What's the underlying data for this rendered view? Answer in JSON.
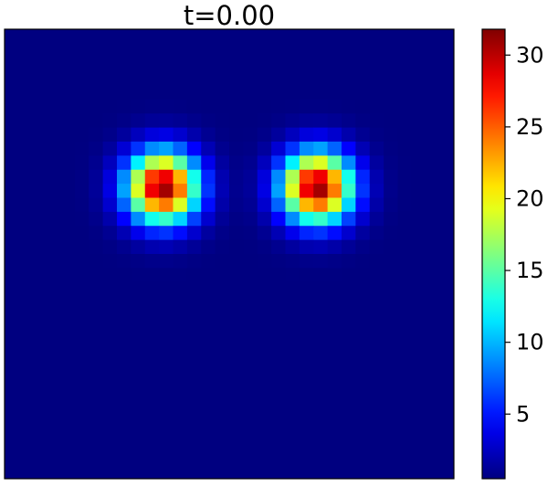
{
  "chart_data": {
    "type": "heatmap",
    "title": "t=0.00",
    "xlabel": "",
    "ylabel": "",
    "axes_visible": false,
    "grid": false,
    "colormap": "jet",
    "grid_size": [
      32,
      32
    ],
    "value_range": [
      0.5,
      31.8
    ],
    "background_value": 0.5,
    "blobs": [
      {
        "name": "left",
        "center_col": 10.75,
        "center_row": 10.75,
        "peak": 31.3,
        "sigma": 1.75
      },
      {
        "name": "right",
        "center_col": 21.75,
        "center_row": 10.75,
        "peak": 31.3,
        "sigma": 1.75
      }
    ],
    "colorbar": {
      "ticks": [
        5,
        10,
        15,
        20,
        25,
        30
      ],
      "tick_labels": [
        "5",
        "10",
        "15",
        "20",
        "25",
        "30"
      ],
      "position": "right"
    }
  }
}
